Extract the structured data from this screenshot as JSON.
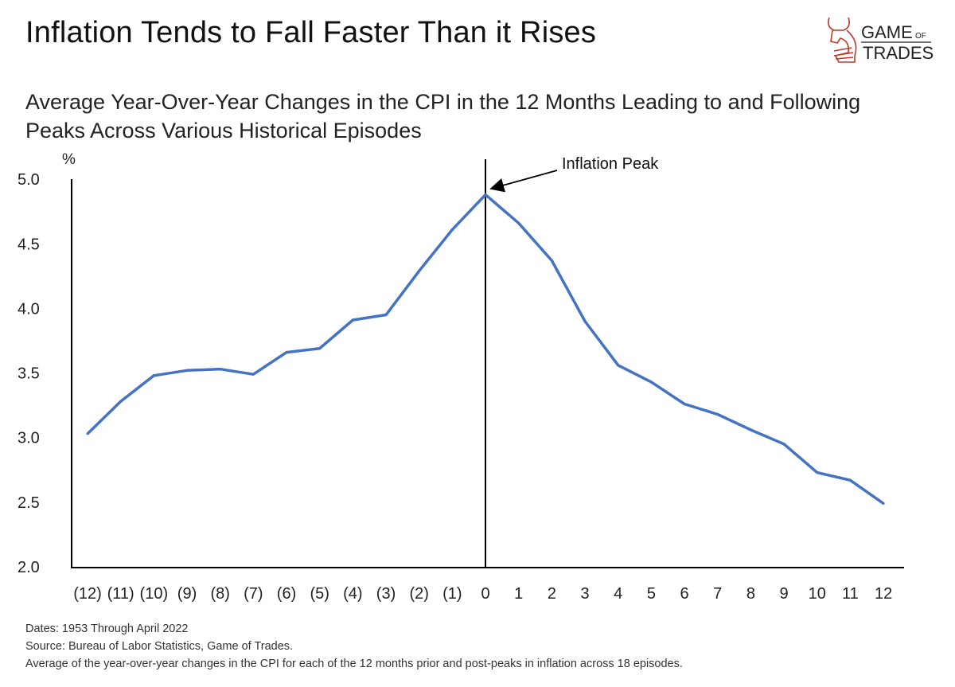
{
  "title": "Inflation Tends to Fall Faster Than it Rises",
  "logo": {
    "text_top": "GAME",
    "text_of": "OF",
    "text_bottom": "TRADES"
  },
  "chart_data": {
    "type": "line",
    "title": "Average Year-Over-Year Changes in the CPI in the 12 Months Leading to and Following Peaks Across Various Historical Episodes",
    "ylabel": "%",
    "xlabel": "",
    "ylim": [
      2.0,
      5.0
    ],
    "yticks": [
      "2.0",
      "2.5",
      "3.0",
      "3.5",
      "4.0",
      "4.5",
      "5.0"
    ],
    "categories": [
      "(12)",
      "(11)",
      "(10)",
      "(9)",
      "(8)",
      "(7)",
      "(6)",
      "(5)",
      "(4)",
      "(3)",
      "(2)",
      "(1)",
      "0",
      "1",
      "2",
      "3",
      "4",
      "5",
      "6",
      "7",
      "8",
      "9",
      "10",
      "11",
      "12"
    ],
    "series": [
      {
        "name": "Average YoY CPI change",
        "color": "#4472C4",
        "values": [
          3.03,
          3.28,
          3.48,
          3.52,
          3.53,
          3.49,
          3.66,
          3.69,
          3.91,
          3.95,
          4.29,
          4.61,
          4.88,
          4.66,
          4.37,
          3.9,
          3.56,
          3.43,
          3.26,
          3.18,
          3.06,
          2.95,
          2.73,
          2.67,
          2.49
        ]
      }
    ],
    "annotation": {
      "text": "Inflation Peak",
      "category": "0"
    },
    "grid": false
  },
  "notes": [
    "Dates: 1953 Through April 2022",
    "Source: Bureau of Labor Statistics, Game of Trades.",
    "Average of the year-over-year changes in the CPI for each of the 12 months prior and post-peaks in inflation across 18 episodes."
  ]
}
